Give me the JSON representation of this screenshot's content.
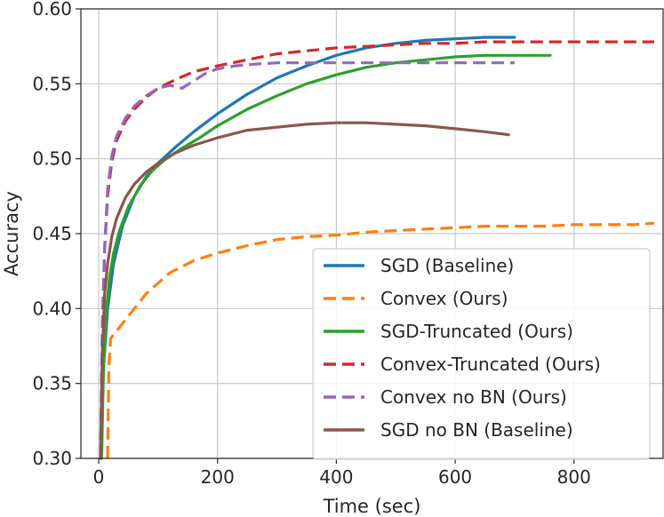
{
  "chart_data": {
    "type": "line",
    "title": "",
    "xlabel": "Time (sec)",
    "ylabel": "Accuracy",
    "xlim": [
      -30,
      950
    ],
    "ylim": [
      0.3,
      0.6
    ],
    "x_ticks": [
      0,
      200,
      400,
      600,
      800
    ],
    "x_tick_labels": [
      "0",
      "200",
      "400",
      "600",
      "800"
    ],
    "y_ticks": [
      0.3,
      0.35,
      0.4,
      0.45,
      0.5,
      0.55,
      0.6
    ],
    "y_tick_labels": [
      "0.30",
      "0.35",
      "0.40",
      "0.45",
      "0.50",
      "0.55",
      "0.60"
    ],
    "grid": true,
    "legend_position": "bottom-right",
    "series": [
      {
        "name": "SGD (Baseline)",
        "color": "#1f77b4",
        "dash": "solid",
        "x": [
          3,
          8,
          15,
          25,
          40,
          60,
          80,
          100,
          130,
          160,
          200,
          250,
          300,
          350,
          400,
          450,
          500,
          550,
          600,
          650,
          700
        ],
        "y": [
          0.3,
          0.36,
          0.4,
          0.43,
          0.455,
          0.475,
          0.488,
          0.497,
          0.508,
          0.518,
          0.53,
          0.543,
          0.554,
          0.562,
          0.569,
          0.574,
          0.577,
          0.579,
          0.58,
          0.581,
          0.581
        ]
      },
      {
        "name": "Convex (Ours)",
        "color": "#ff7f0e",
        "dash": "dashed",
        "x": [
          15,
          17,
          20,
          30,
          50,
          80,
          120,
          160,
          200,
          250,
          300,
          350,
          400,
          450,
          500,
          550,
          600,
          650,
          700,
          750,
          800,
          850,
          900,
          935
        ],
        "y": [
          0.3,
          0.36,
          0.38,
          0.385,
          0.395,
          0.41,
          0.424,
          0.432,
          0.437,
          0.442,
          0.446,
          0.448,
          0.449,
          0.451,
          0.452,
          0.453,
          0.454,
          0.455,
          0.455,
          0.455,
          0.456,
          0.456,
          0.456,
          0.457
        ]
      },
      {
        "name": "SGD-Truncated (Ours)",
        "color": "#2ca02c",
        "dash": "solid",
        "x": [
          5,
          8,
          12,
          18,
          25,
          35,
          50,
          70,
          90,
          110,
          140,
          170,
          200,
          250,
          300,
          350,
          400,
          450,
          500,
          550,
          600,
          650,
          700,
          760
        ],
        "y": [
          0.3,
          0.36,
          0.395,
          0.42,
          0.437,
          0.452,
          0.468,
          0.482,
          0.492,
          0.499,
          0.507,
          0.514,
          0.522,
          0.533,
          0.542,
          0.55,
          0.556,
          0.561,
          0.564,
          0.566,
          0.568,
          0.569,
          0.569,
          0.569
        ]
      },
      {
        "name": "Convex-Truncated (Ours)",
        "color": "#d62728",
        "dash": "dashed",
        "x": [
          3,
          6,
          10,
          15,
          22,
          30,
          45,
          60,
          80,
          100,
          130,
          160,
          200,
          250,
          300,
          350,
          400,
          450,
          500,
          550,
          600,
          650,
          700,
          750,
          800,
          850,
          900,
          935
        ],
        "y": [
          0.3,
          0.38,
          0.44,
          0.475,
          0.498,
          0.512,
          0.525,
          0.533,
          0.541,
          0.547,
          0.553,
          0.558,
          0.562,
          0.566,
          0.57,
          0.572,
          0.574,
          0.575,
          0.576,
          0.577,
          0.577,
          0.578,
          0.578,
          0.578,
          0.578,
          0.578,
          0.578,
          0.578
        ]
      },
      {
        "name": "Convex no BN (Ours)",
        "color": "#9467bd",
        "dash": "dashed",
        "x": [
          3,
          6,
          10,
          15,
          22,
          30,
          45,
          60,
          80,
          100,
          120,
          140,
          160,
          180,
          200,
          230,
          260,
          300,
          350,
          400,
          450,
          500,
          550,
          600,
          650,
          700
        ],
        "y": [
          0.3,
          0.39,
          0.44,
          0.48,
          0.502,
          0.515,
          0.527,
          0.535,
          0.542,
          0.547,
          0.549,
          0.547,
          0.552,
          0.557,
          0.56,
          0.562,
          0.563,
          0.564,
          0.564,
          0.564,
          0.564,
          0.564,
          0.564,
          0.564,
          0.564,
          0.564
        ]
      },
      {
        "name": "SGD no BN (Baseline)",
        "color": "#8c564b",
        "dash": "solid",
        "x": [
          3,
          6,
          10,
          15,
          22,
          30,
          45,
          60,
          80,
          100,
          130,
          160,
          200,
          250,
          300,
          350,
          400,
          450,
          500,
          550,
          600,
          650,
          690
        ],
        "y": [
          0.3,
          0.37,
          0.41,
          0.43,
          0.448,
          0.46,
          0.474,
          0.483,
          0.491,
          0.497,
          0.504,
          0.509,
          0.514,
          0.519,
          0.521,
          0.523,
          0.524,
          0.524,
          0.523,
          0.522,
          0.52,
          0.518,
          0.516
        ]
      }
    ]
  }
}
